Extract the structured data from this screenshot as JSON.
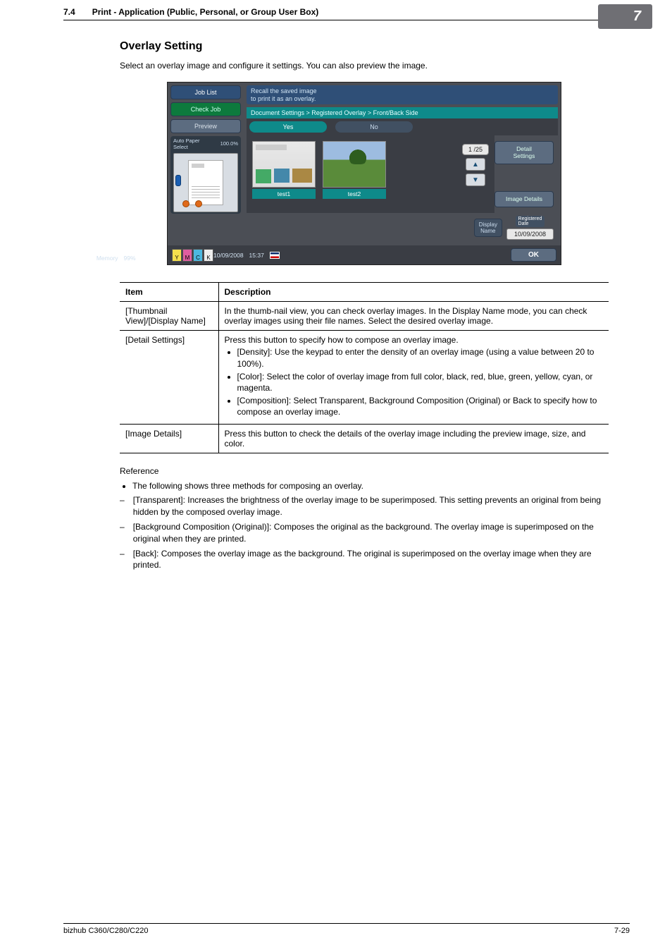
{
  "header": {
    "section_num": "7.4",
    "section_title": "Print - Application (Public, Personal, or Group User Box)",
    "page_badge": "7"
  },
  "heading": "Overlay Setting",
  "intro": "Select an overlay image and configure it settings. You can also preview the image.",
  "panel": {
    "left": {
      "job_list": "Job List",
      "check_job": "Check Job",
      "preview": "Preview",
      "auto_paper_label": "Auto Paper\nSelect",
      "auto_paper_value": "100.0%"
    },
    "msg": "Recall the saved image\nto print it as an overlay.",
    "breadcrumb": "Document Settings > Registered Overlay > Front/Back Side",
    "yes": "Yes",
    "no": "No",
    "thumbs": {
      "t1": "test1",
      "t2": "test2"
    },
    "page_indicator": "1   /25",
    "detail_settings": "Detail\nSettings",
    "image_details": "Image Details",
    "display_name": "Display\nName",
    "registered_date_label": "Registered\nDate",
    "registered_date_value": "10/09/2008",
    "status_date": "10/09/2008",
    "status_time": "15:37",
    "status_memory_label": "Memory",
    "status_memory_value": "99%",
    "ok": "OK",
    "toner": {
      "y": "Y",
      "m": "M",
      "c": "C",
      "k": "K"
    }
  },
  "table": {
    "head_item": "Item",
    "head_desc": "Description",
    "rows": [
      {
        "item": "[Thumbnail View]/[Display Name]",
        "desc_plain": "In the thumb-nail view, you can check overlay images. In the Display Name mode, you can check overlay images using their file names. Select the desired overlay image."
      },
      {
        "item": "[Detail Settings]",
        "desc_lead": "Press this button to specify how to compose an overlay image.",
        "bullets": [
          "[Density]: Use the keypad to enter the density of an overlay image (using a value between 20 to 100%).",
          "[Color]: Select the color of overlay image from full color, black, red, blue, green, yellow, cyan, or magenta.",
          "[Composition]: Select Transparent, Background Composition (Original) or Back to specify how to compose an overlay image."
        ]
      },
      {
        "item": "[Image Details]",
        "desc_plain": "Press this button to check the details of the overlay image including the preview image, size, and color."
      }
    ]
  },
  "reference": {
    "label": "Reference",
    "bullet": "The following shows three methods for composing an overlay.",
    "dashes": [
      "[Transparent]: Increases the brightness of the overlay image to be superimposed. This setting prevents an original from being hidden by the composed overlay image.",
      "[Background Composition (Original)]: Composes the original as the background. The overlay image is superimposed on the original when they are printed.",
      "[Back]: Composes the overlay image as the background. The original is superimposed on the overlay image when they are printed."
    ]
  },
  "footer": {
    "product": "bizhub C360/C280/C220",
    "page": "7-29"
  },
  "colors": {
    "page_badge_bg": "#6f6f74",
    "teal": "#0e8a8a",
    "panel_bg": "#4b4e55"
  }
}
